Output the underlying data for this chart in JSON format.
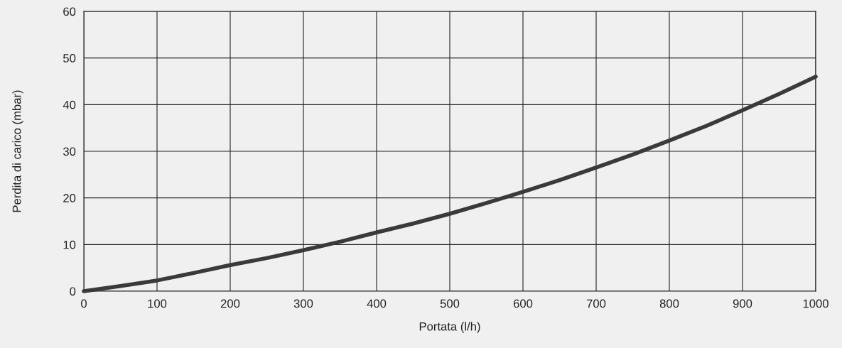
{
  "chart_data": {
    "type": "line",
    "xlabel": "Portata (l/h)",
    "ylabel": "Perdita di carico (mbar)",
    "x": [
      0,
      50,
      100,
      150,
      200,
      250,
      300,
      350,
      400,
      450,
      500,
      550,
      600,
      650,
      700,
      750,
      800,
      850,
      900,
      950,
      1000
    ],
    "series": [
      {
        "color": "#3a3a3a",
        "values": [
          0,
          1.1,
          2.3,
          3.9,
          5.6,
          7.1,
          8.8,
          10.6,
          12.6,
          14.5,
          16.6,
          18.9,
          21.3,
          23.8,
          26.5,
          29.3,
          32.3,
          35.4,
          38.8,
          42.3,
          46.0
        ]
      }
    ],
    "xlim": [
      0,
      1000
    ],
    "xticks": [
      0,
      100,
      200,
      300,
      400,
      500,
      600,
      700,
      800,
      900,
      1000
    ],
    "ylim": [
      0,
      60
    ],
    "yticks": [
      0,
      10,
      20,
      30,
      40,
      50,
      60
    ],
    "grid": true,
    "marker": "none",
    "line_style": "solid",
    "legend": false
  }
}
